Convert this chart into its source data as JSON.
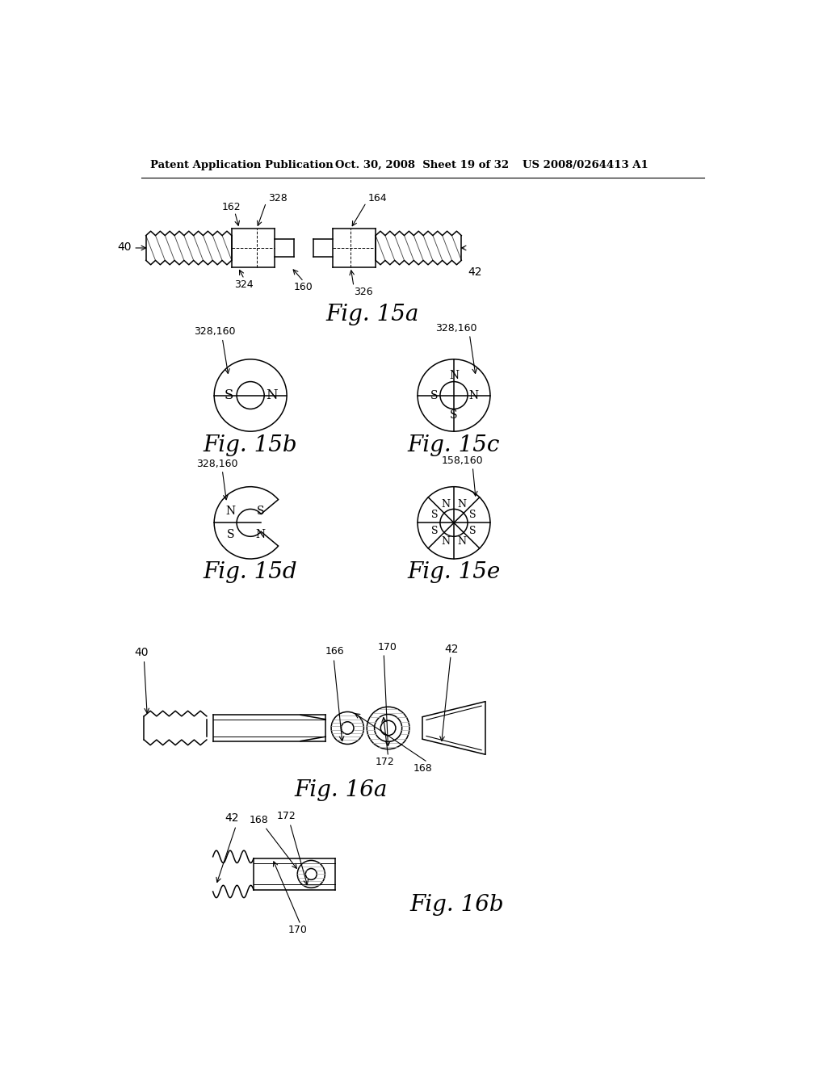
{
  "bg_color": "#ffffff",
  "header_left": "Patent Application Publication",
  "header_mid": "Oct. 30, 2008  Sheet 19 of 32",
  "header_right": "US 2008/0264413 A1",
  "fig15a_caption": "Fig. 15a",
  "fig15b_caption": "Fig. 15b",
  "fig15c_caption": "Fig. 15c",
  "fig15d_caption": "Fig. 15d",
  "fig15e_caption": "Fig. 15e",
  "fig16a_caption": "Fig. 16a",
  "fig16b_caption": "Fig. 16b"
}
